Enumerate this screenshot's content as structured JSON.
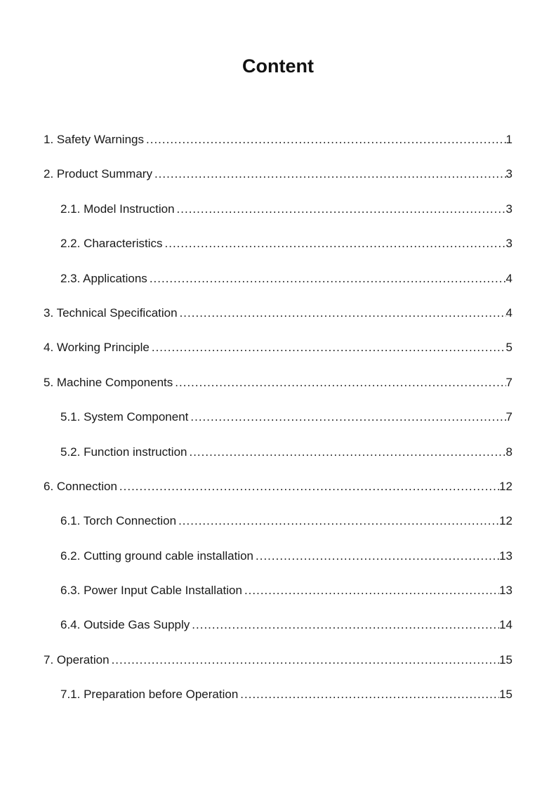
{
  "page": {
    "title": "Content"
  },
  "colors": {
    "text": "#1a1a1a",
    "background": "#ffffff"
  },
  "toc": {
    "entries": [
      {
        "label": "1. Safety Warnings",
        "page": "1",
        "level": 1
      },
      {
        "label": "2. Product Summary",
        "page": "3",
        "level": 1
      },
      {
        "label": "2.1. Model Instruction",
        "page": "3",
        "level": 2
      },
      {
        "label": "2.2. Characteristics",
        "page": "3",
        "level": 2
      },
      {
        "label": "2.3. Applications",
        "page": "4",
        "level": 2
      },
      {
        "label": "3. Technical Specification",
        "page": "4",
        "level": 1
      },
      {
        "label": "4. Working Principle",
        "page": "5",
        "level": 1
      },
      {
        "label": "5. Machine Components",
        "page": "7",
        "level": 1
      },
      {
        "label": "5.1. System Component",
        "page": "7",
        "level": 2
      },
      {
        "label": "5.2. Function instruction",
        "page": "8",
        "level": 2
      },
      {
        "label": "6. Connection",
        "page": "12",
        "level": 1
      },
      {
        "label": "6.1. Torch Connection",
        "page": "12",
        "level": 2
      },
      {
        "label": "6.2. Cutting ground cable installation",
        "page": "13",
        "level": 2
      },
      {
        "label": "6.3. Power Input Cable Installation",
        "page": "13",
        "level": 2
      },
      {
        "label": "6.4. Outside Gas Supply",
        "page": "14",
        "level": 2
      },
      {
        "label": "7. Operation",
        "page": "15",
        "level": 1
      },
      {
        "label": "7.1. Preparation before Operation",
        "page": "15",
        "level": 2
      }
    ]
  }
}
